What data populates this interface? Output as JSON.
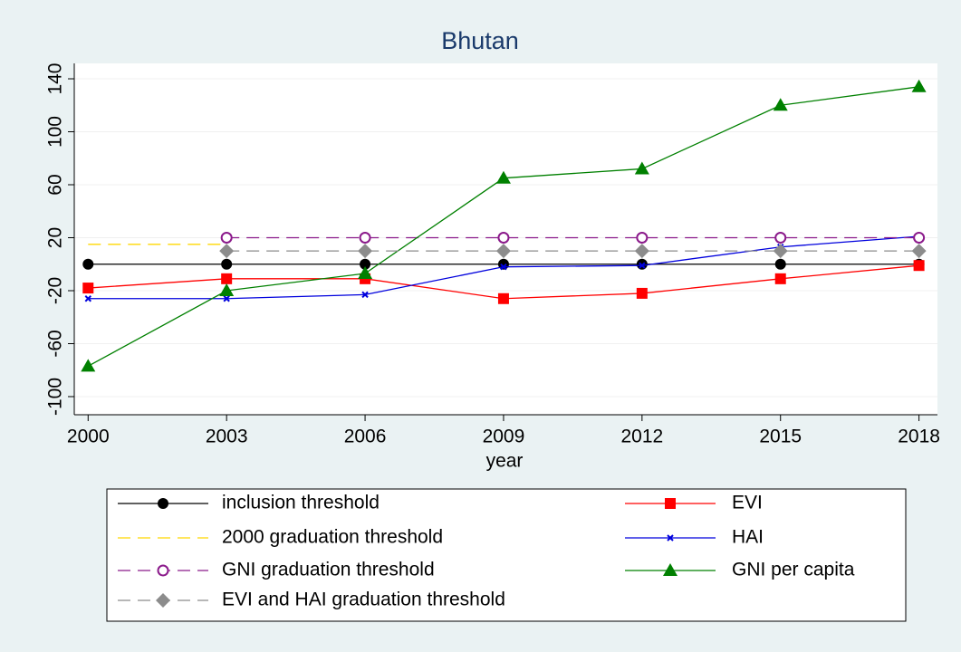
{
  "chart_data": {
    "type": "line",
    "title": "Bhutan",
    "x_label": "year",
    "x": [
      2000,
      2003,
      2006,
      2009,
      2012,
      2015,
      2018
    ],
    "xlim": [
      1999.7,
      2018.4
    ],
    "xticks": [
      2000,
      2003,
      2006,
      2009,
      2012,
      2015,
      2018
    ],
    "ylim": [
      -110,
      150
    ],
    "yticks": [
      -100,
      -60,
      -20,
      20,
      60,
      100,
      140
    ],
    "grid": true,
    "series": [
      {
        "name": "inclusion threshold",
        "color": "#000000",
        "marker": "circle",
        "dash": false,
        "values": [
          0,
          0,
          0,
          0,
          0,
          0,
          0
        ]
      },
      {
        "name": "EVI",
        "color": "#ff0000",
        "marker": "square",
        "dash": false,
        "values": [
          -18,
          -11,
          -11,
          -26,
          -22,
          -11,
          -1
        ]
      },
      {
        "name": "2000 graduation threshold",
        "color": "#ffd700",
        "marker": "none",
        "dash": true,
        "values": [
          15,
          15,
          null,
          null,
          null,
          null,
          null
        ]
      },
      {
        "name": "HAI",
        "color": "#0000dd",
        "marker": "x",
        "dash": false,
        "values": [
          -26,
          -26,
          -23,
          -2,
          -1,
          13,
          21
        ]
      },
      {
        "name": "GNI graduation threshold",
        "color": "#8b1a8b",
        "marker": "hollow-circle",
        "dash": true,
        "values": [
          null,
          20,
          20,
          20,
          20,
          20,
          20
        ]
      },
      {
        "name": "GNI per capita",
        "color": "#008000",
        "marker": "triangle",
        "dash": false,
        "values": [
          -77,
          -20,
          -7,
          65,
          72,
          120,
          134
        ]
      },
      {
        "name": "EVI and HAI graduation threshold",
        "color": "#8c8c8c",
        "marker": "diamond",
        "dash": true,
        "values": [
          null,
          10,
          10,
          10,
          10,
          10,
          10
        ]
      }
    ]
  }
}
